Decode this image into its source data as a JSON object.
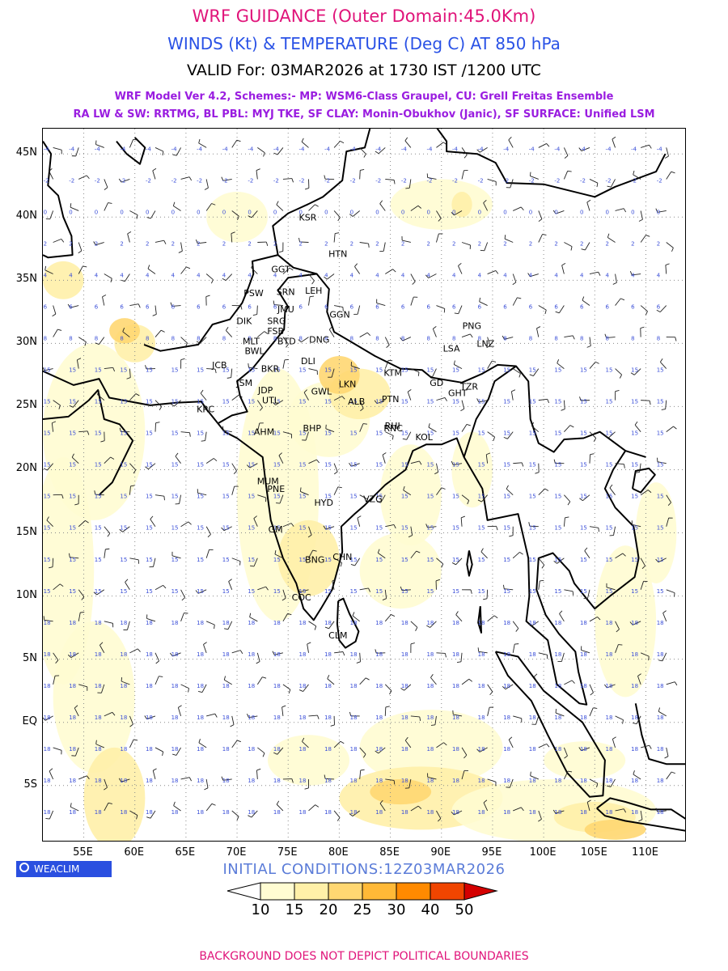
{
  "header": {
    "title": "WRF GUIDANCE (Outer Domain:45.0Km)",
    "subtitle": "WINDS (Kt) & TEMPERATURE (Deg C) AT 850 hPa",
    "valid": "VALID For: 03MAR2026 at 1730 IST /1200 UTC",
    "model_line1": "WRF Model Ver 4.2, Schemes:- MP: WSM6-Class Graupel, CU: Grell Freitas Ensemble",
    "model_line2": "RA LW & SW: RRTMG, BL PBL: MYJ TKE, SF CLAY: Monin-Obukhov (Janic), SF SURFACE: Unified LSM"
  },
  "map": {
    "lon_range": [
      51,
      114
    ],
    "lat_range": [
      -9.5,
      47
    ],
    "lat_labels": [
      "45N",
      "40N",
      "35N",
      "30N",
      "25N",
      "20N",
      "15N",
      "10N",
      "5N",
      "EQ",
      "5S"
    ],
    "lat_values": [
      45,
      40,
      35,
      30,
      25,
      20,
      15,
      10,
      5,
      0,
      -5
    ],
    "lon_labels": [
      "55E",
      "60E",
      "65E",
      "70E",
      "75E",
      "80E",
      "85E",
      "90E",
      "95E",
      "100E",
      "105E",
      "110E"
    ],
    "lon_values": [
      55,
      60,
      65,
      70,
      75,
      80,
      85,
      90,
      95,
      100,
      105,
      110
    ],
    "stations": [
      {
        "name": "KSR",
        "lon": 77.0,
        "lat": 40.0
      },
      {
        "name": "HTN",
        "lon": 79.9,
        "lat": 37.1
      },
      {
        "name": "GGT",
        "lon": 74.3,
        "lat": 35.9
      },
      {
        "name": "PSW",
        "lon": 71.6,
        "lat": 34.0
      },
      {
        "name": "SRN",
        "lon": 74.8,
        "lat": 34.1
      },
      {
        "name": "LEH",
        "lon": 77.6,
        "lat": 34.2
      },
      {
        "name": "JMU",
        "lon": 74.9,
        "lat": 32.7
      },
      {
        "name": "GGN",
        "lon": 80.0,
        "lat": 32.3
      },
      {
        "name": "DIK",
        "lon": 70.9,
        "lat": 31.8
      },
      {
        "name": "SRG",
        "lon": 73.9,
        "lat": 31.8
      },
      {
        "name": "FSB",
        "lon": 73.9,
        "lat": 31.0
      },
      {
        "name": "MLT",
        "lon": 71.5,
        "lat": 30.2
      },
      {
        "name": "BTD",
        "lon": 74.9,
        "lat": 30.2
      },
      {
        "name": "DNG",
        "lon": 78.0,
        "lat": 30.3
      },
      {
        "name": "BWL",
        "lon": 71.7,
        "lat": 29.4
      },
      {
        "name": "PNG",
        "lon": 93.0,
        "lat": 31.4
      },
      {
        "name": "LSA",
        "lon": 91.1,
        "lat": 29.6
      },
      {
        "name": "LNZ",
        "lon": 94.4,
        "lat": 30.0
      },
      {
        "name": "JCB",
        "lon": 68.5,
        "lat": 28.3
      },
      {
        "name": "BKR",
        "lon": 73.3,
        "lat": 28.0
      },
      {
        "name": "DLI",
        "lon": 77.2,
        "lat": 28.6
      },
      {
        "name": "KTM",
        "lon": 85.3,
        "lat": 27.7
      },
      {
        "name": "JSM",
        "lon": 70.9,
        "lat": 26.9
      },
      {
        "name": "LKN",
        "lon": 80.9,
        "lat": 26.8
      },
      {
        "name": "GWL",
        "lon": 78.2,
        "lat": 26.2
      },
      {
        "name": "JDP",
        "lon": 73.0,
        "lat": 26.3
      },
      {
        "name": "UTL",
        "lon": 73.4,
        "lat": 25.5
      },
      {
        "name": "GD",
        "lon": 89.8,
        "lat": 26.9
      },
      {
        "name": "GHT",
        "lon": 91.6,
        "lat": 26.1
      },
      {
        "name": "TZR",
        "lon": 92.8,
        "lat": 26.6
      },
      {
        "name": "ALB",
        "lon": 81.8,
        "lat": 25.4
      },
      {
        "name": "PTN",
        "lon": 85.1,
        "lat": 25.6
      },
      {
        "name": "KRC",
        "lon": 67.0,
        "lat": 24.8
      },
      {
        "name": "RHI",
        "lon": 85.4,
        "lat": 23.5
      },
      {
        "name": "BHP",
        "lon": 77.4,
        "lat": 23.3
      },
      {
        "name": "AHM",
        "lon": 72.6,
        "lat": 23.0
      },
      {
        "name": "RNC",
        "lon": 85.3,
        "lat": 23.3
      },
      {
        "name": "KOL",
        "lon": 88.4,
        "lat": 22.6
      },
      {
        "name": "MUM",
        "lon": 72.9,
        "lat": 19.1
      },
      {
        "name": "PNE",
        "lon": 73.9,
        "lat": 18.5
      },
      {
        "name": "HYD",
        "lon": 78.5,
        "lat": 17.4
      },
      {
        "name": "VZG",
        "lon": 83.3,
        "lat": 17.7
      },
      {
        "name": "GM",
        "lon": 74.0,
        "lat": 15.3
      },
      {
        "name": "BNG",
        "lon": 77.6,
        "lat": 12.9
      },
      {
        "name": "CHN",
        "lon": 80.3,
        "lat": 13.1
      },
      {
        "name": "COC",
        "lon": 76.3,
        "lat": 9.9
      },
      {
        "name": "CLM",
        "lon": 79.9,
        "lat": 6.9
      }
    ]
  },
  "logo": {
    "text": "WEACLIM"
  },
  "initial_conditions": "INITIAL CONDITIONS:12Z03MAR2026",
  "colorbar": {
    "labels": [
      "10",
      "15",
      "20",
      "25",
      "30",
      "40",
      "50"
    ],
    "colors": [
      "#fffcd2",
      "#fff0a8",
      "#ffd772",
      "#ffb937",
      "#ff8a00",
      "#f04500",
      "#d40000"
    ]
  },
  "footer": "BACKGROUND DOES NOT DEPICT POLITICAL BOUNDARIES"
}
